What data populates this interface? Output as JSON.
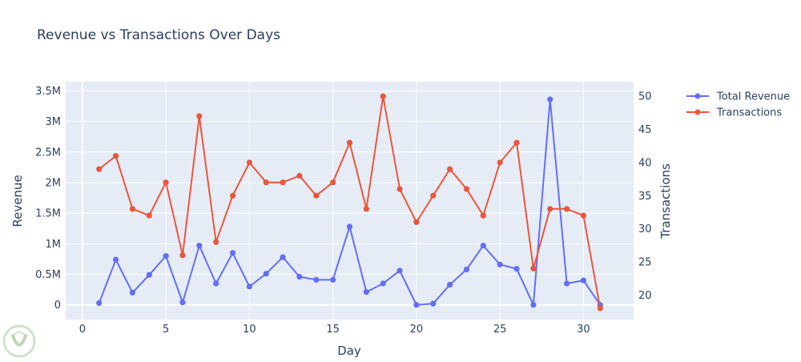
{
  "chart_data": {
    "type": "line",
    "title": "Revenue vs Transactions Over Days",
    "xlabel": "Day",
    "ylabel": "Revenue",
    "y2label": "Transactions",
    "xlim": [
      -1,
      33
    ],
    "ylim": [
      -240000,
      3650000
    ],
    "y2lim": [
      16.3,
      52.2
    ],
    "x_ticks": [
      0,
      5,
      10,
      15,
      20,
      25,
      30
    ],
    "y_ticks": [
      0,
      500000,
      1000000,
      1500000,
      2000000,
      2500000,
      3000000,
      3500000
    ],
    "y_tick_labels": [
      "0",
      "0.5M",
      "1M",
      "1.5M",
      "2M",
      "2.5M",
      "3M",
      "3.5M"
    ],
    "y2_ticks": [
      20,
      25,
      30,
      35,
      40,
      45,
      50
    ],
    "grid": true,
    "legend_position": "top-right",
    "x": [
      1,
      2,
      3,
      4,
      5,
      6,
      7,
      8,
      9,
      10,
      11,
      12,
      13,
      14,
      15,
      16,
      17,
      18,
      19,
      20,
      21,
      22,
      23,
      24,
      25,
      26,
      27,
      28,
      29,
      30,
      31
    ],
    "series": [
      {
        "name": "Total Revenue",
        "axis": "y",
        "color": "#636efa",
        "values": [
          30000,
          740000,
          200000,
          490000,
          800000,
          40000,
          970000,
          350000,
          850000,
          300000,
          510000,
          780000,
          460000,
          410000,
          410000,
          1280000,
          210000,
          350000,
          560000,
          0,
          20000,
          330000,
          580000,
          970000,
          660000,
          590000,
          0,
          3360000,
          350000,
          400000,
          0
        ]
      },
      {
        "name": "Transactions",
        "axis": "y2",
        "color": "#ef553b",
        "values": [
          39,
          41,
          33,
          32,
          37,
          26,
          47,
          28,
          35,
          40,
          37,
          37,
          38,
          35,
          37,
          43,
          33,
          50,
          36,
          31,
          35,
          39,
          36,
          32,
          40,
          43,
          24,
          33,
          33,
          32,
          18
        ]
      }
    ]
  }
}
